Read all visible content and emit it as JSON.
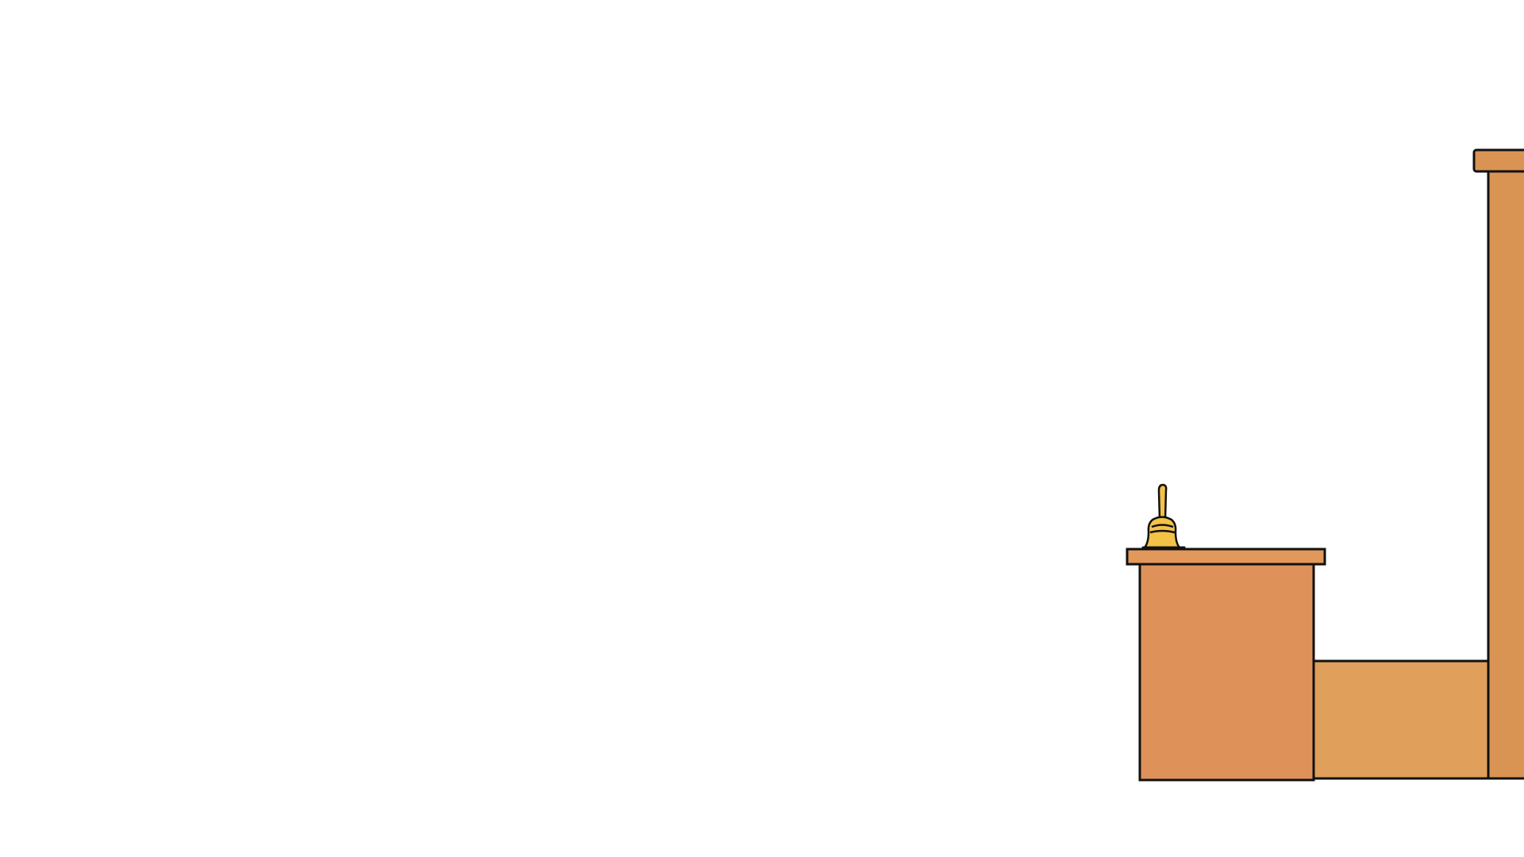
{
  "scene": {
    "background": "#ffffff",
    "outline_color": "#111111",
    "objects": [
      {
        "name": "reception-desk",
        "color": "#de925a"
      },
      {
        "name": "desk-top",
        "color": "#e2975b"
      },
      {
        "name": "low-counter",
        "color": "#e09f5b"
      },
      {
        "name": "tall-counter",
        "color": "#d99453"
      },
      {
        "name": "service-bell-icon",
        "color": "#f3c247"
      }
    ]
  }
}
